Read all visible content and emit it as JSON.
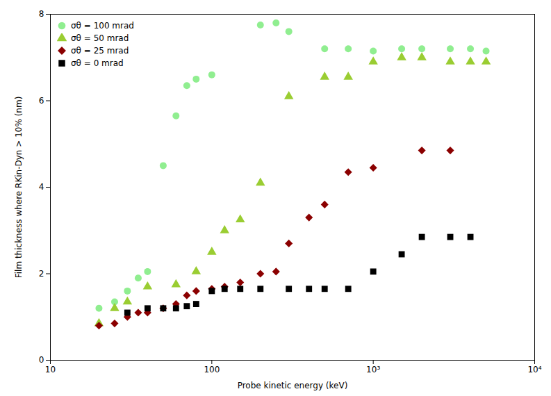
{
  "chart_data": {
    "type": "scatter",
    "xlabel": "Probe kinetic energy (keV)",
    "ylabel": "Film thickness where RKin-Dyn > 10% (nm)",
    "log": "x",
    "grid": false,
    "legend": "upper left",
    "xlim": [
      10,
      10000
    ],
    "ylim": [
      0,
      8
    ],
    "xticks": [
      10,
      100,
      {
        "value": 1000,
        "label": "10³"
      },
      {
        "value": 10000,
        "label": "10⁴"
      }
    ],
    "yticks": [
      0,
      2,
      4,
      6,
      8
    ],
    "series": [
      {
        "name": "σθ = 100 mrad",
        "color": "#90EE90",
        "marker": "circle",
        "x": [
          20,
          25,
          30,
          35,
          40,
          50,
          60,
          70,
          80,
          100,
          200,
          250,
          300,
          500,
          700,
          1000,
          1500,
          2000,
          3000,
          4000,
          5000
        ],
        "values": [
          1.2,
          1.35,
          1.6,
          1.9,
          2.05,
          4.5,
          5.65,
          6.35,
          6.5,
          6.6,
          7.75,
          7.8,
          7.6,
          7.2,
          7.2,
          7.15,
          7.2,
          7.2,
          7.2,
          7.2,
          7.15
        ]
      },
      {
        "name": "σθ = 50 mrad",
        "color": "#9ACD32",
        "marker": "triangle",
        "x": [
          20,
          25,
          30,
          40,
          60,
          80,
          100,
          120,
          150,
          200,
          300,
          500,
          700,
          1000,
          1500,
          2000,
          3000,
          4000,
          5000
        ],
        "values": [
          0.85,
          1.2,
          1.35,
          1.7,
          1.75,
          2.05,
          2.5,
          3.0,
          3.25,
          4.1,
          6.1,
          6.55,
          6.55,
          6.9,
          7.0,
          7.0,
          6.9,
          6.9,
          6.9
        ]
      },
      {
        "name": "σθ = 25 mrad",
        "color": "#8B0000",
        "marker": "diamond",
        "x": [
          20,
          25,
          30,
          35,
          40,
          50,
          60,
          70,
          80,
          100,
          120,
          150,
          200,
          250,
          300,
          400,
          500,
          700,
          1000,
          2000,
          3000
        ],
        "values": [
          0.8,
          0.85,
          1.0,
          1.1,
          1.1,
          1.2,
          1.3,
          1.5,
          1.6,
          1.65,
          1.7,
          1.8,
          2.0,
          2.05,
          2.7,
          3.3,
          3.6,
          4.35,
          4.45,
          4.85,
          4.85
        ]
      },
      {
        "name": "σθ = 0 mrad",
        "color": "#000000",
        "marker": "square",
        "x": [
          30,
          40,
          50,
          60,
          70,
          80,
          100,
          120,
          150,
          200,
          300,
          400,
          500,
          700,
          1000,
          1500,
          2000,
          3000,
          4000
        ],
        "values": [
          1.1,
          1.2,
          1.2,
          1.2,
          1.25,
          1.3,
          1.6,
          1.65,
          1.65,
          1.65,
          1.65,
          1.65,
          1.65,
          1.65,
          2.05,
          2.45,
          2.85,
          2.85,
          2.85
        ]
      }
    ]
  }
}
